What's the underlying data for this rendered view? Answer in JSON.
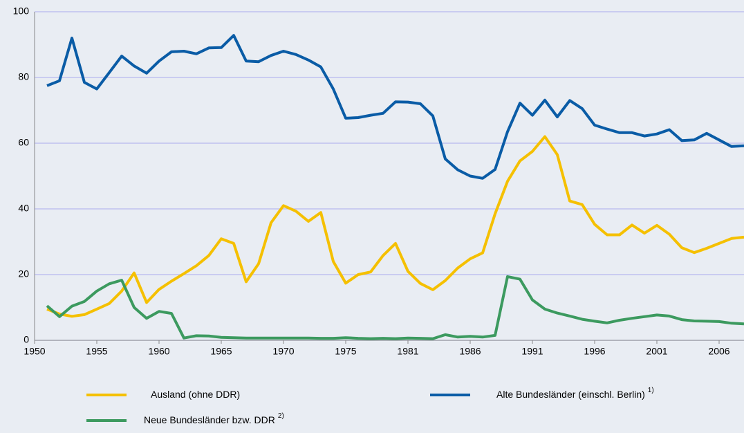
{
  "chart_data": {
    "type": "line",
    "categories": [
      "1950",
      null,
      null,
      null,
      null,
      "1955",
      null,
      null,
      null,
      null,
      "1960",
      null,
      null,
      null,
      null,
      "1965",
      null,
      null,
      null,
      null,
      "1970",
      null,
      null,
      null,
      null,
      "1975",
      null,
      null,
      null,
      null,
      "1981",
      null,
      null,
      null,
      null,
      "1986",
      null,
      null,
      null,
      null,
      "1991",
      null,
      null,
      null,
      null,
      "1996",
      null,
      null,
      null,
      null,
      "2001",
      null,
      null,
      null,
      null,
      "2006",
      null,
      null
    ],
    "series": [
      {
        "name": "Ausland (ohne DDR)",
        "color": "#f5c000",
        "values": [
          null,
          9.5,
          8,
          7.3,
          7.8,
          9.5,
          11.2,
          15,
          20.5,
          11.5,
          15.5,
          18,
          20.3,
          22.7,
          25.8,
          30.9,
          29.5,
          17.8,
          23.3,
          35.8,
          41,
          39.3,
          36.2,
          38.9,
          24,
          17.4,
          20,
          20.8,
          25.8,
          29.5,
          21,
          17.3,
          15.4,
          18.2,
          22,
          24.8,
          26.6,
          38.5,
          48.4,
          54.6,
          57.5,
          62,
          56.5,
          42.4,
          41.3,
          35.3,
          32.1,
          32.1,
          35.1,
          32.6,
          35,
          32.3,
          28.2,
          26.7,
          28,
          29.5,
          31,
          31.4
        ]
      },
      {
        "name": "Alte Bundesländer (einschl. Berlin)",
        "note": "1)",
        "color": "#0a5ca6",
        "values": [
          null,
          77.5,
          79,
          92,
          78.5,
          76.5,
          81.5,
          86.5,
          83.5,
          81.3,
          85,
          87.8,
          88,
          87.2,
          89,
          89.1,
          92.8,
          85,
          84.8,
          86.7,
          88,
          87,
          85.3,
          83.2,
          76.5,
          67.6,
          67.8,
          68.5,
          69.1,
          72.6,
          72.5,
          72,
          68.3,
          55.2,
          51.9,
          50,
          49.3,
          52,
          63.5,
          72.2,
          68.5,
          73.1,
          68,
          73,
          70.5,
          65.5,
          64.3,
          63.2,
          63.2,
          62.2,
          62.8,
          64.1,
          60.8,
          61,
          63,
          61,
          59,
          59.2
        ]
      },
      {
        "name": "Neue Bundesländer bzw. DDR",
        "note": "2)",
        "color": "#3c9a5f",
        "values": [
          null,
          10.5,
          7.2,
          10.4,
          11.8,
          15,
          17.2,
          18.3,
          10,
          6.7,
          8.8,
          8.2,
          0.7,
          1.4,
          1.3,
          0.9,
          0.8,
          0.7,
          0.7,
          0.7,
          0.7,
          0.7,
          0.7,
          0.6,
          0.6,
          0.8,
          0.6,
          0.5,
          0.6,
          0.5,
          0.7,
          0.6,
          0.5,
          1.7,
          1.0,
          1.2,
          1.0,
          1.5,
          19.4,
          18.6,
          12.3,
          9.5,
          8.3,
          7.4,
          6.4,
          5.8,
          5.3,
          6.1,
          6.7,
          7.2,
          7.7,
          7.4,
          6.3,
          5.9,
          5.8,
          5.7,
          5.2,
          5.0
        ]
      }
    ],
    "ylim": [
      0,
      100
    ],
    "yticks": [
      0,
      20,
      40,
      60,
      80,
      100
    ],
    "grid": true
  }
}
